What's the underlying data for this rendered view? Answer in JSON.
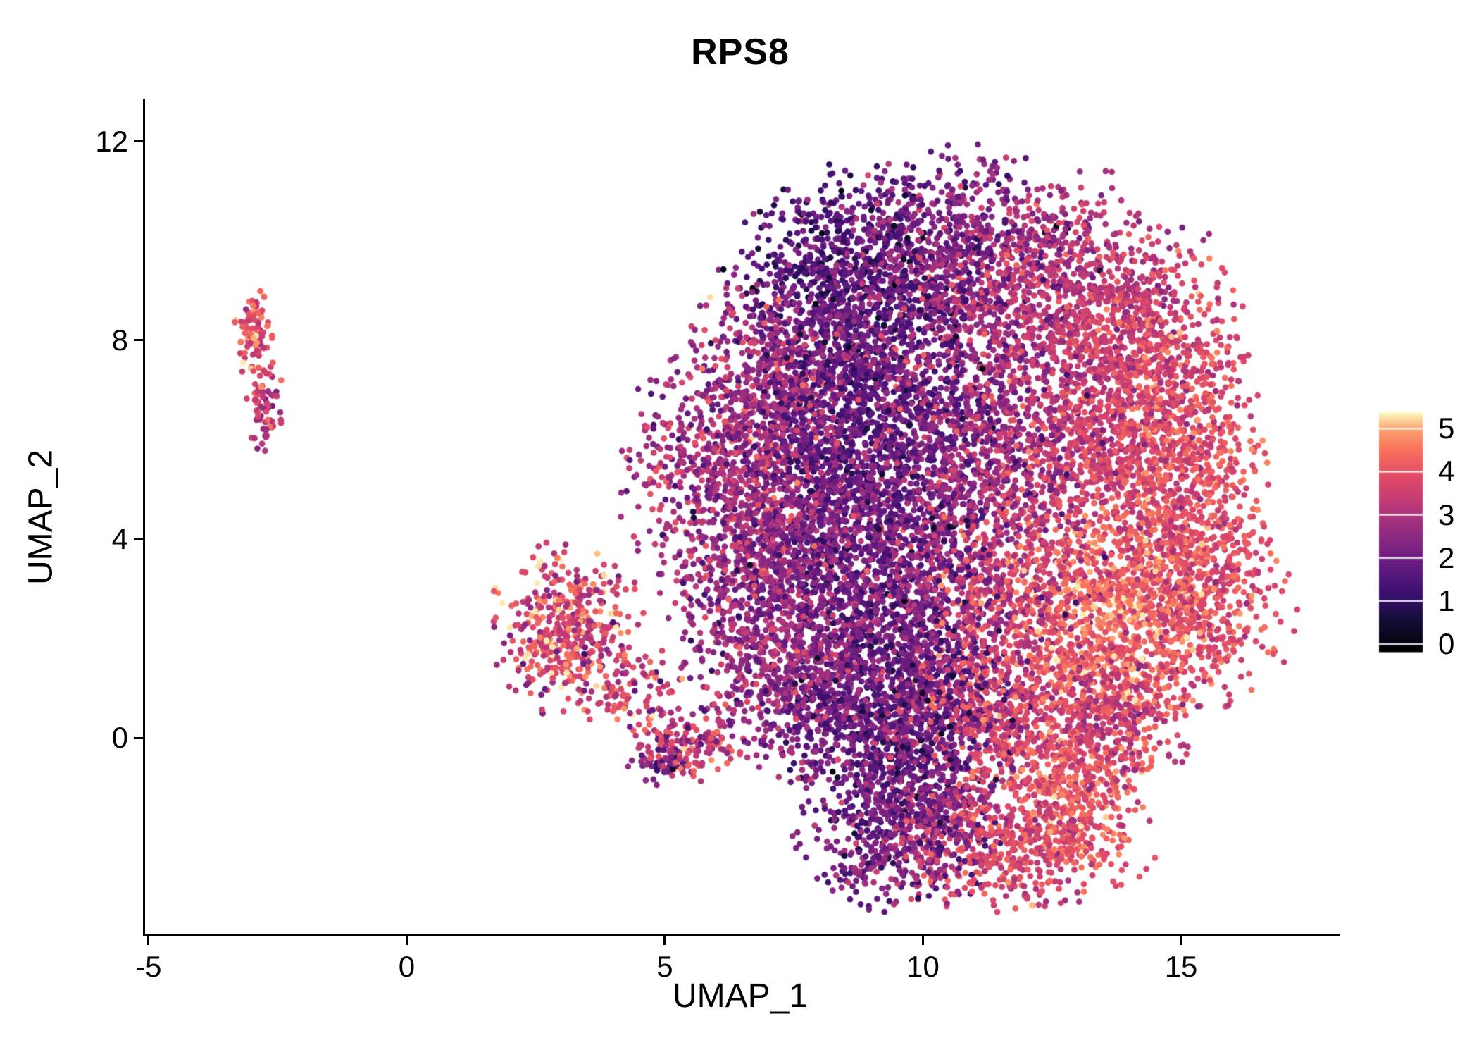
{
  "figure": {
    "background": "#ffffff",
    "text_color": "#000000"
  },
  "chart_data": {
    "type": "scatter",
    "title": "RPS8",
    "xlabel": "UMAP_1",
    "ylabel": "UMAP_2",
    "xlim": [
      -5.08,
      18.0
    ],
    "ylim": [
      -3.94,
      12.82
    ],
    "x_ticks": [
      -5,
      0,
      5,
      10,
      15
    ],
    "y_ticks": [
      0,
      4,
      8,
      12
    ],
    "grid": false,
    "point_radius_px": 4.4,
    "seed": 20240608,
    "legend_position": "right",
    "color_scale": {
      "name": "magma",
      "vmin": -0.18,
      "vmax": 5.38,
      "legend_ticks": [
        0,
        1,
        2,
        3,
        4,
        5
      ],
      "stops": [
        [
          0.0,
          "#000004"
        ],
        [
          0.12,
          "#120d32"
        ],
        [
          0.24,
          "#3b0f70"
        ],
        [
          0.36,
          "#641a80"
        ],
        [
          0.48,
          "#8c2981"
        ],
        [
          0.6,
          "#b73779"
        ],
        [
          0.72,
          "#de4968"
        ],
        [
          0.84,
          "#f7705c"
        ],
        [
          0.93,
          "#fe9f6d"
        ],
        [
          1.0,
          "#fcfdbf"
        ]
      ]
    },
    "clusters": [
      {
        "name": "main-top-left-dark",
        "cx": 8.6,
        "cy": 9.0,
        "sx": 1.1,
        "sy": 1.1,
        "n": 900,
        "expr_mean": 1.6,
        "expr_sd": 0.6
      },
      {
        "name": "main-top-center",
        "cx": 10.6,
        "cy": 9.6,
        "sx": 1.2,
        "sy": 1.0,
        "n": 800,
        "expr_mean": 2.3,
        "expr_sd": 0.7
      },
      {
        "name": "main-top-right",
        "cx": 12.9,
        "cy": 8.9,
        "sx": 1.3,
        "sy": 1.1,
        "n": 800,
        "expr_mean": 3.3,
        "expr_sd": 0.5
      },
      {
        "name": "main-upper-right-edge",
        "cx": 14.5,
        "cy": 7.6,
        "sx": 0.9,
        "sy": 1.0,
        "n": 450,
        "expr_mean": 3.7,
        "expr_sd": 0.5
      },
      {
        "name": "main-upper-left",
        "cx": 7.3,
        "cy": 7.4,
        "sx": 0.9,
        "sy": 0.9,
        "n": 500,
        "expr_mean": 2.6,
        "expr_sd": 0.7
      },
      {
        "name": "main-mid-dark-band",
        "cx": 9.0,
        "cy": 6.2,
        "sx": 1.1,
        "sy": 1.2,
        "n": 1000,
        "expr_mean": 1.6,
        "expr_sd": 0.5
      },
      {
        "name": "main-mid-center",
        "cx": 11.0,
        "cy": 6.0,
        "sx": 1.2,
        "sy": 1.2,
        "n": 900,
        "expr_mean": 2.6,
        "expr_sd": 0.7
      },
      {
        "name": "main-mid-right",
        "cx": 13.3,
        "cy": 5.9,
        "sx": 1.2,
        "sy": 1.2,
        "n": 800,
        "expr_mean": 3.6,
        "expr_sd": 0.5
      },
      {
        "name": "main-right-edge",
        "cx": 15.0,
        "cy": 5.0,
        "sx": 0.8,
        "sy": 1.3,
        "n": 700,
        "expr_mean": 3.9,
        "expr_sd": 0.5
      },
      {
        "name": "main-left-lobe",
        "cx": 6.4,
        "cy": 5.3,
        "sx": 1.0,
        "sy": 1.2,
        "n": 800,
        "expr_mean": 2.8,
        "expr_sd": 0.7
      },
      {
        "name": "main-left-mid",
        "cx": 7.8,
        "cy": 4.2,
        "sx": 1.0,
        "sy": 1.0,
        "n": 600,
        "expr_mean": 2.4,
        "expr_sd": 0.7
      },
      {
        "name": "main-lower-mid-dark",
        "cx": 9.3,
        "cy": 2.8,
        "sx": 1.1,
        "sy": 1.2,
        "n": 900,
        "expr_mean": 1.9,
        "expr_sd": 0.6
      },
      {
        "name": "main-lower-center",
        "cx": 11.4,
        "cy": 2.9,
        "sx": 1.2,
        "sy": 1.1,
        "n": 700,
        "expr_mean": 3.2,
        "expr_sd": 0.7
      },
      {
        "name": "main-bright-patch",
        "cx": 13.6,
        "cy": 2.4,
        "sx": 1.1,
        "sy": 1.0,
        "n": 800,
        "expr_mean": 4.4,
        "expr_sd": 0.45
      },
      {
        "name": "main-lower-right-edge",
        "cx": 15.4,
        "cy": 2.6,
        "sx": 0.8,
        "sy": 0.9,
        "n": 400,
        "expr_mean": 3.8,
        "expr_sd": 0.5
      },
      {
        "name": "main-lower-left",
        "cx": 6.9,
        "cy": 2.6,
        "sx": 0.9,
        "sy": 1.0,
        "n": 500,
        "expr_mean": 2.7,
        "expr_sd": 0.7
      },
      {
        "name": "main-bottom-dark-band",
        "cx": 9.5,
        "cy": 0.4,
        "sx": 1.1,
        "sy": 0.9,
        "n": 900,
        "expr_mean": 1.8,
        "expr_sd": 0.6
      },
      {
        "name": "main-bottom-orange",
        "cx": 11.9,
        "cy": 0.4,
        "sx": 1.3,
        "sy": 0.8,
        "n": 700,
        "expr_mean": 3.7,
        "expr_sd": 0.55
      },
      {
        "name": "main-bottom-right",
        "cx": 13.8,
        "cy": 0.6,
        "sx": 0.7,
        "sy": 0.7,
        "n": 300,
        "expr_mean": 3.4,
        "expr_sd": 0.6
      },
      {
        "name": "main-bottom-left",
        "cx": 7.6,
        "cy": 0.9,
        "sx": 0.8,
        "sy": 0.8,
        "n": 400,
        "expr_mean": 2.5,
        "expr_sd": 0.7
      },
      {
        "name": "lobe-bottom-dark",
        "cx": 9.6,
        "cy": -1.7,
        "sx": 0.9,
        "sy": 0.8,
        "n": 650,
        "expr_mean": 2.1,
        "expr_sd": 0.7
      },
      {
        "name": "lobe-bottom-orange",
        "cx": 11.7,
        "cy": -2.1,
        "sx": 1.2,
        "sy": 0.65,
        "n": 550,
        "expr_mean": 3.7,
        "expr_sd": 0.5
      },
      {
        "name": "lobe-bottom-bright",
        "cx": 12.9,
        "cy": -1.2,
        "sx": 0.6,
        "sy": 0.6,
        "n": 250,
        "expr_mean": 4.2,
        "expr_sd": 0.5
      },
      {
        "name": "small-cluster-core",
        "cx": 3.1,
        "cy": 2.2,
        "sx": 0.65,
        "sy": 0.75,
        "n": 420,
        "expr_mean": 3.7,
        "expr_sd": 0.85
      },
      {
        "name": "small-cluster-neck",
        "cx": 4.3,
        "cy": 1.0,
        "sx": 0.5,
        "sy": 0.4,
        "n": 90,
        "expr_mean": 3.4,
        "expr_sd": 0.8
      },
      {
        "name": "small-cluster-arm",
        "cx": 5.5,
        "cy": -0.1,
        "sx": 0.6,
        "sy": 0.35,
        "n": 150,
        "expr_mean": 3.3,
        "expr_sd": 0.8
      },
      {
        "name": "small-cluster-arm-dark",
        "cx": 5.0,
        "cy": -0.55,
        "sx": 0.3,
        "sy": 0.25,
        "n": 50,
        "expr_mean": 2.0,
        "expr_sd": 0.8
      },
      {
        "name": "far-left-top",
        "cx": -2.95,
        "cy": 8.1,
        "sx": 0.18,
        "sy": 0.45,
        "n": 90,
        "expr_mean": 4.0,
        "expr_sd": 0.6
      },
      {
        "name": "far-left-bottom",
        "cx": -2.75,
        "cy": 6.7,
        "sx": 0.15,
        "sy": 0.45,
        "n": 70,
        "expr_mean": 3.4,
        "expr_sd": 0.7
      }
    ]
  }
}
